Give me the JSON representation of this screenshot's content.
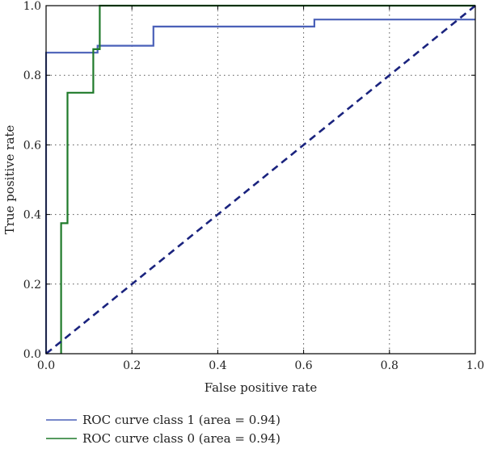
{
  "chart_data": {
    "type": "line",
    "title": "",
    "xlabel": "False positive rate",
    "ylabel": "True positive rate",
    "xlim": [
      0.0,
      1.0
    ],
    "ylim": [
      0.0,
      1.0
    ],
    "xticks": [
      "0.0",
      "0.2",
      "0.4",
      "0.6",
      "0.8",
      "1.0"
    ],
    "yticks": [
      "0.0",
      "0.2",
      "0.4",
      "0.6",
      "0.8",
      "1.0"
    ],
    "grid": true,
    "legend_position": "below",
    "series": [
      {
        "name": "ROC curve class 1 (area = 0.94)",
        "color": "#4a60b8",
        "x": [
          0.0,
          0.0,
          0.12,
          0.12,
          0.25,
          0.25,
          0.625,
          0.625,
          1.0
        ],
        "y": [
          0.0,
          0.865,
          0.865,
          0.885,
          0.885,
          0.94,
          0.94,
          0.96,
          0.96
        ]
      },
      {
        "name": "ROC curve class 0 (area = 0.94)",
        "color": "#1f7a2a",
        "x": [
          0.035,
          0.035,
          0.05,
          0.05,
          0.11,
          0.11,
          0.125,
          0.125,
          1.0
        ],
        "y": [
          0.0,
          0.375,
          0.375,
          0.75,
          0.75,
          0.875,
          0.875,
          1.0,
          1.0
        ]
      },
      {
        "color": "#1a237e",
        "dashed": true,
        "x": [
          0.0,
          1.0
        ],
        "y": [
          0.0,
          1.0
        ]
      }
    ]
  }
}
